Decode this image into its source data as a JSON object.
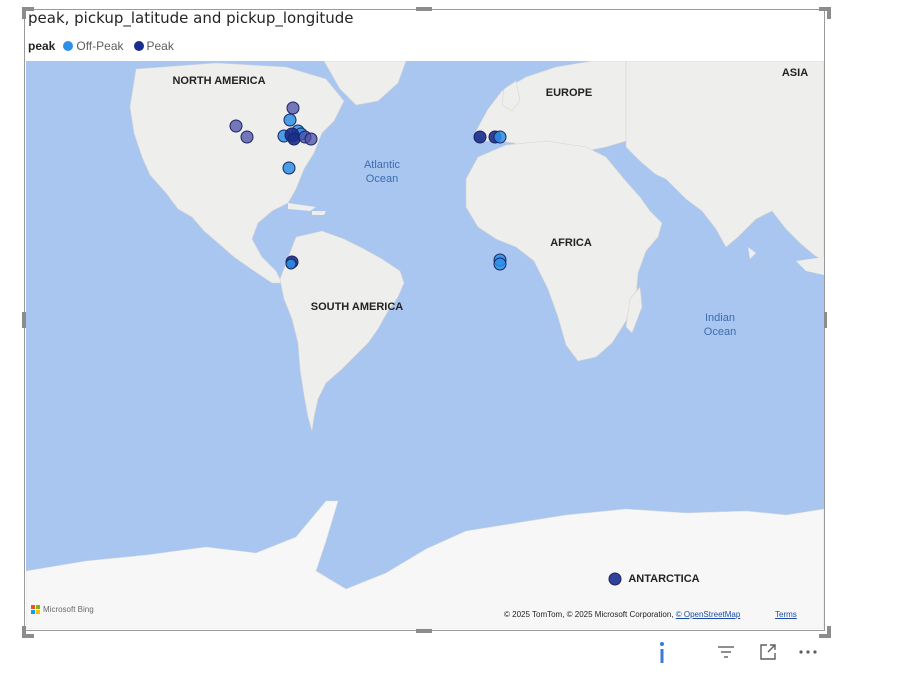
{
  "visual": {
    "title": "peak, pickup_latitude and pickup_longitude"
  },
  "legend": {
    "title": "peak",
    "items": [
      {
        "label": "Off-Peak",
        "color": "#2d8fe6"
      },
      {
        "label": "Peak",
        "color": "#1a2d8c"
      }
    ]
  },
  "map": {
    "labels": {
      "north_america": "NORTH AMERICA",
      "europe": "EUROPE",
      "asia": "ASIA",
      "africa": "AFRICA",
      "south_america": "SOUTH AMERICA",
      "antarctica": "ANTARCTICA",
      "atlantic_1": "Atlantic",
      "atlantic_2": "Ocean",
      "indian_1": "Indian",
      "indian_2": "Ocean"
    },
    "colors": {
      "water": "#a9c6f0",
      "land": "#eeeeec",
      "ice": "#f7f7f7",
      "off_peak": "#2d8fe6",
      "peak": "#1a2d8c"
    }
  },
  "attribution": {
    "bing": "Microsoft Bing",
    "copyright": "© 2025 TomTom, © 2025 Microsoft Corporation,",
    "osm": "© OpenStreetMap",
    "terms": "Terms"
  },
  "toolbar": {
    "info_icon": "info-icon",
    "filter_icon": "filter-icon",
    "focus_icon": "focus-mode-icon",
    "more_icon": "more-options-icon"
  }
}
